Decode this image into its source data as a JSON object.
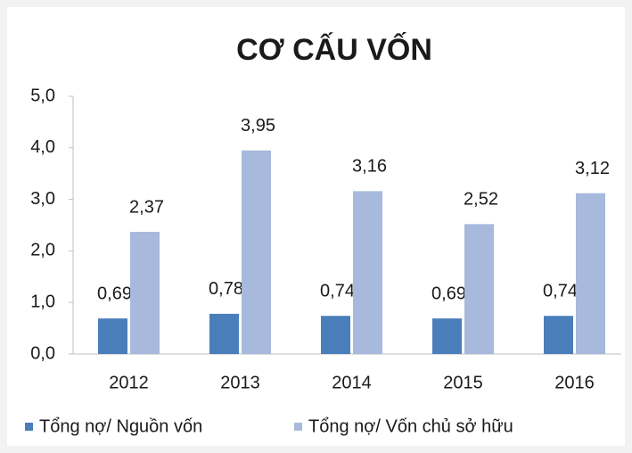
{
  "chart_data": {
    "type": "bar",
    "title": "CƠ CẤU VỐN",
    "categories": [
      "2012",
      "2013",
      "2014",
      "2015",
      "2016"
    ],
    "series": [
      {
        "name": "Tổng nợ/ Nguồn vốn",
        "color": "#4a7ebb",
        "values": [
          0.69,
          0.78,
          0.74,
          0.69,
          0.74
        ],
        "value_labels": [
          "0,69",
          "0,78",
          "0,74",
          "0,69",
          "0,74"
        ]
      },
      {
        "name": "Tổng nợ/ Vốn chủ sở hữu",
        "color": "#a7b9dc",
        "values": [
          2.37,
          3.95,
          3.16,
          2.52,
          3.12
        ],
        "value_labels": [
          "2,37",
          "3,95",
          "3,16",
          "2,52",
          "3,12"
        ]
      }
    ],
    "ylim": [
      0,
      5
    ],
    "yticks": [
      {
        "value": 0,
        "label": "0,0"
      },
      {
        "value": 1,
        "label": "1,0"
      },
      {
        "value": 2,
        "label": "2,0"
      },
      {
        "value": 3,
        "label": "3,0"
      },
      {
        "value": 4,
        "label": "4,0"
      },
      {
        "value": 5,
        "label": "5,0"
      }
    ],
    "grid": false,
    "legend": "bottom"
  }
}
